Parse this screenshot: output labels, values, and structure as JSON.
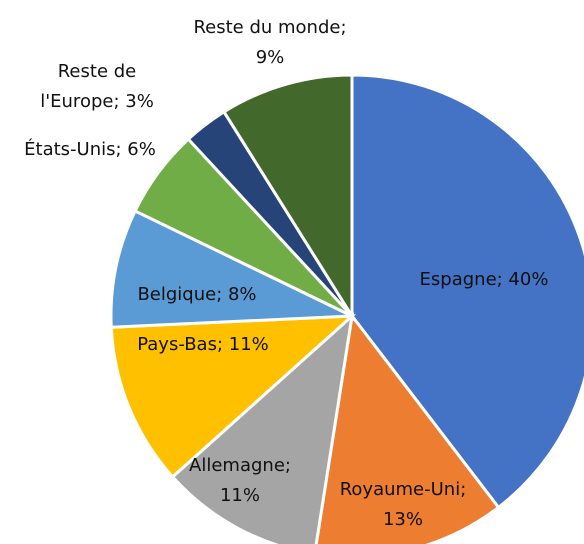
{
  "chart_data": {
    "type": "pie",
    "values": [
      40,
      13,
      11,
      11,
      8,
      6,
      3,
      9
    ],
    "value_labels": [
      [
        "Espagne; 40%"
      ],
      [
        "Royaume-Uni;",
        "13%"
      ],
      [
        "Allemagne;",
        "11%"
      ],
      [
        "Pays-Bas; 11%"
      ],
      [
        "Belgique; 8%"
      ],
      [
        "États-Unis; 6%"
      ],
      [
        "Reste de",
        "l'Europe; 3%"
      ],
      [
        "Reste du monde;",
        "9%"
      ]
    ],
    "colors": [
      "#4472c4",
      "#ed7d31",
      "#a5a5a5",
      "#ffc000",
      "#5b9bd5",
      "#70ad47",
      "#264478",
      "#43682b"
    ]
  }
}
